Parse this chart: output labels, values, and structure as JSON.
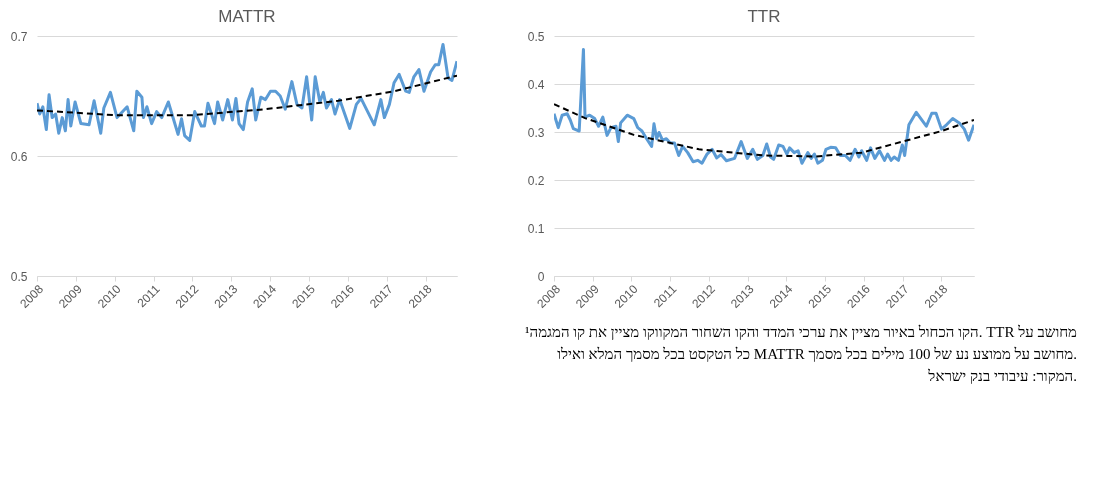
{
  "chart_data": [
    {
      "type": "line",
      "title": "MATTR",
      "xlim": [
        2008,
        2018.81
      ],
      "xticks": [
        2008,
        2009,
        2010,
        2011,
        2012,
        2013,
        2014,
        2015,
        2016,
        2017,
        2018
      ],
      "ylim": [
        0.5,
        0.7
      ],
      "yticks": [
        0.5,
        0.6,
        0.7
      ],
      "grid": "y",
      "annotations": [
        "¹הקו הכחול באיור מציין את ערכי המדד והקו השחור המקווקו מציין את קו המגמה. TTR מחושב על כל הטקסט בכל מסמך המלא ואילו MATTR מחושב על ממוצע נע של 100 מילים בכל מסמך.",
        "המקור: עיבודי בנק ישראל."
      ],
      "series": [
        {
          "color": "#5b9bd5",
          "x": [
            2008.0,
            2008.07,
            2008.15,
            2008.24,
            2008.31,
            2008.39,
            2008.48,
            2008.56,
            2008.65,
            2008.73,
            2008.8,
            2008.87,
            2008.98,
            2009.13,
            2009.34,
            2009.47,
            2009.64,
            2009.72,
            2009.89,
            2010.06,
            2010.32,
            2010.49,
            2010.57,
            2010.7,
            2010.74,
            2010.83,
            2010.95,
            2011.08,
            2011.21,
            2011.38,
            2011.51,
            2011.63,
            2011.72,
            2011.8,
            2011.93,
            2012.06,
            2012.23,
            2012.31,
            2012.4,
            2012.57,
            2012.65,
            2012.78,
            2012.91,
            2013.03,
            2013.12,
            2013.2,
            2013.31,
            2013.42,
            2013.54,
            2013.63,
            2013.76,
            2013.88,
            2014.01,
            2014.14,
            2014.26,
            2014.39,
            2014.56,
            2014.69,
            2014.82,
            2014.94,
            2015.07,
            2015.16,
            2015.28,
            2015.37,
            2015.45,
            2015.58,
            2015.67,
            2015.79,
            2015.92,
            2016.05,
            2016.22,
            2016.34,
            2016.51,
            2016.68,
            2016.85,
            2016.94,
            2017.07,
            2017.19,
            2017.32,
            2017.49,
            2017.58,
            2017.7,
            2017.83,
            2017.96,
            2018.13,
            2018.25,
            2018.34,
            2018.45,
            2018.58,
            2018.68,
            2018.81
          ],
          "values": [
            0.644,
            0.635,
            0.641,
            0.622,
            0.651,
            0.632,
            0.635,
            0.619,
            0.632,
            0.621,
            0.647,
            0.625,
            0.645,
            0.627,
            0.626,
            0.646,
            0.619,
            0.64,
            0.653,
            0.632,
            0.641,
            0.621,
            0.654,
            0.649,
            0.632,
            0.641,
            0.627,
            0.637,
            0.632,
            0.645,
            0.631,
            0.618,
            0.631,
            0.617,
            0.613,
            0.637,
            0.625,
            0.625,
            0.644,
            0.627,
            0.645,
            0.63,
            0.647,
            0.63,
            0.648,
            0.627,
            0.622,
            0.645,
            0.656,
            0.63,
            0.649,
            0.647,
            0.654,
            0.654,
            0.65,
            0.639,
            0.662,
            0.643,
            0.64,
            0.666,
            0.63,
            0.666,
            0.645,
            0.653,
            0.64,
            0.647,
            0.635,
            0.647,
            0.635,
            0.623,
            0.643,
            0.648,
            0.637,
            0.626,
            0.647,
            0.632,
            0.643,
            0.661,
            0.668,
            0.654,
            0.653,
            0.666,
            0.672,
            0.654,
            0.67,
            0.676,
            0.676,
            0.693,
            0.665,
            0.663,
            0.679
          ]
        },
        {
          "type": "line",
          "color": "#000000",
          "line_style": "dashed",
          "x": [
            2008.0,
            2010.02,
            2012.0,
            2013.87,
            2015.75,
            2017.2,
            2018.81
          ],
          "values": [
            0.638,
            0.634,
            0.634,
            0.639,
            0.646,
            0.654,
            0.667
          ]
        }
      ]
    },
    {
      "type": "line",
      "title": "TTR",
      "xlim": [
        2008,
        2018.84
      ],
      "xticks": [
        2008,
        2009,
        2010,
        2011,
        2012,
        2013,
        2014,
        2015,
        2016,
        2017,
        2018
      ],
      "ylim": [
        0,
        0.5
      ],
      "yticks": [
        0,
        0.1,
        0.2,
        0.3,
        0.4,
        0.5
      ],
      "grid": "y",
      "series": [
        {
          "color": "#5b9bd5",
          "x": [
            2008.0,
            2008.11,
            2008.21,
            2008.34,
            2008.42,
            2008.5,
            2008.65,
            2008.76,
            2008.8,
            2008.92,
            2009.05,
            2009.15,
            2009.26,
            2009.37,
            2009.47,
            2009.6,
            2009.66,
            2009.72,
            2009.89,
            2010.06,
            2010.16,
            2010.27,
            2010.39,
            2010.52,
            2010.58,
            2010.65,
            2010.71,
            2010.8,
            2010.9,
            2011.0,
            2011.11,
            2011.22,
            2011.32,
            2011.45,
            2011.59,
            2011.71,
            2011.82,
            2011.95,
            2012.08,
            2012.2,
            2012.31,
            2012.45,
            2012.66,
            2012.83,
            2012.99,
            2013.13,
            2013.25,
            2013.39,
            2013.49,
            2013.59,
            2013.67,
            2013.8,
            2013.91,
            2014.01,
            2014.08,
            2014.2,
            2014.3,
            2014.4,
            2014.55,
            2014.64,
            2014.72,
            2014.81,
            2014.93,
            2015.02,
            2015.14,
            2015.27,
            2015.39,
            2015.52,
            2015.64,
            2015.77,
            2015.87,
            2015.94,
            2016.07,
            2016.17,
            2016.28,
            2016.4,
            2016.53,
            2016.61,
            2016.7,
            2016.78,
            2016.89,
            2016.99,
            2017.05,
            2017.16,
            2017.35,
            2017.61,
            2017.75,
            2017.86,
            2018.0,
            2018.13,
            2018.29,
            2018.46,
            2018.59,
            2018.7,
            2018.84
          ],
          "values": [
            0.338,
            0.309,
            0.335,
            0.338,
            0.325,
            0.307,
            0.302,
            0.472,
            0.331,
            0.335,
            0.328,
            0.312,
            0.331,
            0.293,
            0.309,
            0.312,
            0.28,
            0.319,
            0.335,
            0.328,
            0.309,
            0.302,
            0.286,
            0.27,
            0.317,
            0.286,
            0.299,
            0.283,
            0.286,
            0.277,
            0.277,
            0.251,
            0.27,
            0.257,
            0.238,
            0.241,
            0.235,
            0.254,
            0.264,
            0.246,
            0.253,
            0.24,
            0.245,
            0.28,
            0.245,
            0.264,
            0.243,
            0.251,
            0.275,
            0.248,
            0.243,
            0.273,
            0.27,
            0.254,
            0.267,
            0.257,
            0.261,
            0.235,
            0.257,
            0.245,
            0.254,
            0.235,
            0.241,
            0.264,
            0.268,
            0.267,
            0.251,
            0.251,
            0.241,
            0.264,
            0.248,
            0.261,
            0.241,
            0.267,
            0.245,
            0.261,
            0.241,
            0.254,
            0.241,
            0.248,
            0.241,
            0.273,
            0.251,
            0.315,
            0.341,
            0.312,
            0.339,
            0.339,
            0.306,
            0.315,
            0.328,
            0.319,
            0.306,
            0.283,
            0.315
          ]
        },
        {
          "type": "line",
          "color": "#000000",
          "line_style": "dashed",
          "x": [
            2008.0,
            2008.8,
            2010.06,
            2011.74,
            2013.42,
            2014.76,
            2015.94,
            2016.99,
            2018.0,
            2018.84
          ],
          "values": [
            0.358,
            0.329,
            0.294,
            0.264,
            0.251,
            0.249,
            0.257,
            0.28,
            0.302,
            0.325
          ]
        }
      ]
    }
  ]
}
